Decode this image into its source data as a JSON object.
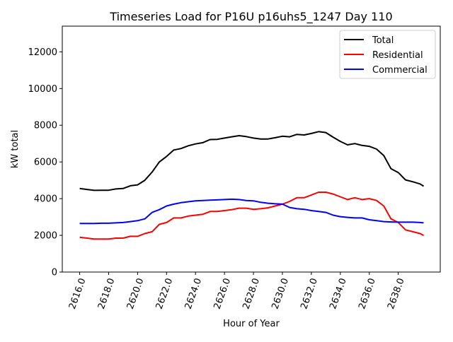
{
  "chart_data": {
    "type": "line",
    "title": "Timeseries Load for P16U p16uhs5_1247  Day 110",
    "xlabel": "Hour of Year",
    "ylabel": "kW total",
    "xlim": [
      2614.8,
      2640.9
    ],
    "ylim": [
      0,
      13400
    ],
    "grid": false,
    "legend_position": "top-right",
    "xticks": [
      2616,
      2618,
      2620,
      2622,
      2624,
      2626,
      2628,
      2630,
      2632,
      2634,
      2636,
      2638
    ],
    "xtick_labels": [
      "2616.0",
      "2618.0",
      "2620.0",
      "2622.0",
      "2624.0",
      "2626.0",
      "2628.0",
      "2630.0",
      "2632.0",
      "2634.0",
      "2636.0",
      "2638.0"
    ],
    "yticks": [
      0,
      2000,
      4000,
      6000,
      8000,
      10000,
      12000
    ],
    "ytick_labels": [
      "0",
      "2000",
      "4000",
      "6000",
      "8000",
      "10000",
      "12000"
    ],
    "x": [
      2616,
      2616.5,
      2617,
      2617.5,
      2618,
      2618.5,
      2619,
      2619.5,
      2620,
      2620.5,
      2621,
      2621.5,
      2622,
      2622.5,
      2623,
      2623.5,
      2624,
      2624.5,
      2625,
      2625.5,
      2626,
      2626.5,
      2627,
      2627.5,
      2628,
      2628.5,
      2629,
      2629.5,
      2630,
      2630.5,
      2631,
      2631.5,
      2632,
      2632.5,
      2633,
      2633.5,
      2634,
      2634.5,
      2635,
      2635.5,
      2636,
      2636.5,
      2637,
      2637.5,
      2638,
      2638.5,
      2639,
      2639.5,
      2639.75
    ],
    "series": [
      {
        "name": "Total",
        "color": "#000000",
        "values": [
          4550,
          4500,
          4450,
          4460,
          4460,
          4530,
          4550,
          4700,
          4750,
          5000,
          5450,
          6000,
          6300,
          6650,
          6730,
          6880,
          6980,
          7050,
          7220,
          7230,
          7300,
          7370,
          7430,
          7380,
          7300,
          7250,
          7250,
          7320,
          7400,
          7370,
          7500,
          7470,
          7550,
          7650,
          7600,
          7350,
          7120,
          6930,
          7000,
          6900,
          6850,
          6700,
          6350,
          5630,
          5420,
          5020,
          4920,
          4800,
          4680
        ]
      },
      {
        "name": "Residential",
        "color": "#ff0000",
        "values": [
          1900,
          1850,
          1800,
          1800,
          1800,
          1850,
          1850,
          1950,
          1950,
          2100,
          2200,
          2600,
          2700,
          2950,
          2950,
          3050,
          3100,
          3150,
          3300,
          3300,
          3350,
          3400,
          3480,
          3480,
          3420,
          3450,
          3500,
          3600,
          3700,
          3850,
          4050,
          4050,
          4200,
          4350,
          4350,
          4250,
          4100,
          3950,
          4050,
          3950,
          4000,
          3900,
          3600,
          2900,
          2700,
          2300,
          2200,
          2100,
          2000
        ]
      },
      {
        "name": "Commercial",
        "color": "#0000ff",
        "values": [
          2650,
          2650,
          2650,
          2660,
          2660,
          2680,
          2700,
          2750,
          2800,
          2900,
          3250,
          3400,
          3600,
          3700,
          3780,
          3830,
          3880,
          3900,
          3920,
          3930,
          3950,
          3970,
          3950,
          3900,
          3880,
          3800,
          3750,
          3720,
          3700,
          3520,
          3450,
          3420,
          3350,
          3300,
          3250,
          3100,
          3020,
          2980,
          2950,
          2950,
          2850,
          2800,
          2750,
          2730,
          2720,
          2720,
          2720,
          2700,
          2680
        ]
      }
    ]
  }
}
